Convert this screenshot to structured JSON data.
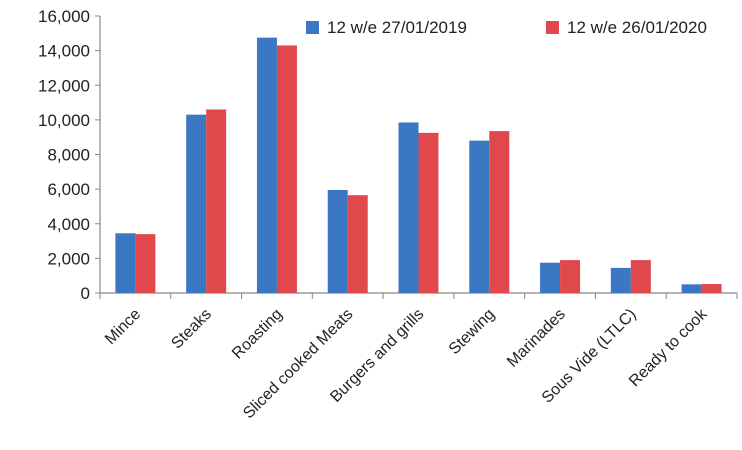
{
  "chart_data": {
    "type": "bar",
    "title": "",
    "xlabel": "",
    "ylabel": "",
    "ylim": [
      0,
      16000
    ],
    "yticks": [
      0,
      2000,
      4000,
      6000,
      8000,
      10000,
      12000,
      14000,
      16000
    ],
    "ytick_labels": [
      "0",
      "2,000",
      "4,000",
      "6,000",
      "8,000",
      "10,000",
      "12,000",
      "14,000",
      "16,000"
    ],
    "grid": false,
    "legend_position": "top",
    "categories": [
      "Mince",
      "Steaks",
      "Roasting",
      "Sliced cooked Meats",
      "Burgers and grills",
      "Stewing",
      "Marinades",
      "Sous Vide (LTLC)",
      "Ready to cook"
    ],
    "series": [
      {
        "name": "12 w/e 27/01/2019",
        "color": "#3a78c4",
        "values": [
          3450,
          10300,
          14750,
          5950,
          9850,
          8800,
          1750,
          1450,
          500
        ]
      },
      {
        "name": "12 w/e 26/01/2020",
        "color": "#e0484b",
        "values": [
          3400,
          10600,
          14300,
          5650,
          9250,
          9350,
          1900,
          1900,
          520
        ]
      }
    ]
  }
}
